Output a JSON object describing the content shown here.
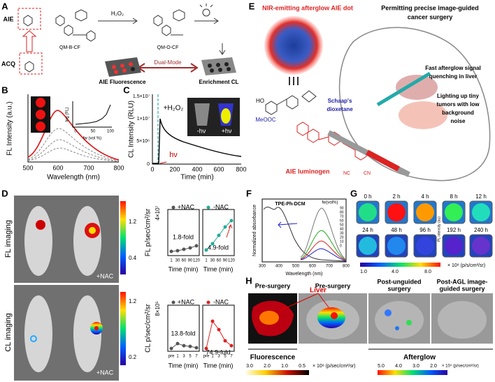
{
  "panel_labels": [
    "A",
    "B",
    "C",
    "D",
    "E",
    "F",
    "G",
    "H"
  ],
  "panel_a": {
    "aie": "AIE",
    "acq": "ACQ",
    "probe": "QM-B-CF",
    "reagent": "H₂O₂",
    "product": "QM-O-CF",
    "fluorescence": "AIE Fluorescence",
    "mode": "Dual-Mode",
    "enrichment": "Enrichment CL"
  },
  "panel_b": {
    "y_label": "FL Intensity (a.u.)",
    "x_label": "Wavelength (nm)",
    "x_ticks": [
      "500",
      "600",
      "700",
      "800"
    ],
    "inset_y_label": "log (FL)",
    "inset_x_label": "fw (vol %)",
    "inset_x_ticks": [
      "0",
      "50",
      "100"
    ]
  },
  "panel_c": {
    "y_label": "CL Intensity (RLU)",
    "x_label": "Time (min)",
    "y_ticks": [
      "0",
      "5×10⁶",
      "1×10⁷",
      "1.5×10⁷"
    ],
    "x_ticks": [
      "0",
      "200",
      "400",
      "600",
      "800"
    ],
    "reagent": "+H₂O₂",
    "light": "hν",
    "dark_vial": "-hν",
    "lit_vial": "+hν"
  },
  "panel_e": {
    "dot_title": "NIR-emitting afterglow AIE dot",
    "surgery_title": [
      "Permitting precise image-guided",
      "cancer surgery"
    ],
    "hydroxy": "HO",
    "ester": "MeOOC",
    "dioxetane": [
      "Schaap's",
      "dioxetane"
    ],
    "luminogen": "AIE luminogen",
    "nitrile_left": "NC",
    "nitrile_right": "CN",
    "liver_note": [
      "Fast afterglow signal",
      "quenching in liver"
    ],
    "tumor_note": [
      "Lighting up tiny",
      "tumors with low",
      "background",
      "noise"
    ]
  },
  "panel_d": {
    "fl_row": "FL imaging",
    "cl_row": "CL imaging",
    "treatment": "+NAC",
    "fl_scale": [
      "1.2",
      "0.4"
    ],
    "cl_scale": [
      "1.2",
      "0.2"
    ],
    "groups": [
      "+NAC",
      "-NAC"
    ],
    "fl_y_label": "FL p/sec/cm²/sr",
    "fl_y_unit": "4×10⁷",
    "fl_x_ticks": [
      "1",
      "30",
      "60",
      "90",
      "120"
    ],
    "fl_folds": [
      "1.8-fold",
      "4.9-fold"
    ],
    "cl_y_label": "CL p/sec/cm²/sr",
    "cl_y_unit": "8×10⁵",
    "cl_x_ticks": [
      "pre",
      "1",
      "3",
      "5",
      "7"
    ],
    "cl_folds": [
      "13.8-fold",
      "74.9-fold"
    ],
    "x_label": "Time (min)"
  },
  "panel_f": {
    "compound": "TPE-Ph-DCM",
    "legend_title": "fw(vol%)",
    "legend": [
      "90",
      "80",
      "70",
      "60",
      "50",
      "40",
      "30",
      "20",
      "10",
      "0"
    ],
    "y_label": "Normalized absorbance",
    "x_label": "Wavelength (nm)",
    "x_ticks": [
      "300",
      "400",
      "500",
      "600",
      "700",
      "800"
    ]
  },
  "panel_g": {
    "times": [
      "0 h",
      "2 h",
      "4 h",
      "8 h",
      "12 h",
      "24 h",
      "48 h",
      "96 h",
      "192 h",
      "240 h"
    ],
    "side_label": "PL intensity (au)",
    "scale": [
      "1.0",
      "4.0",
      "8.0"
    ],
    "unit": "× 10⁸ (p/s/cm²/sr)"
  },
  "panel_h": {
    "titles": [
      [
        "Pre-surgery"
      ],
      [
        "Pre-surgery"
      ],
      [
        "Post-unguided",
        "surgery"
      ],
      [
        "Post-AGL image-",
        "guided surgery"
      ]
    ],
    "organ": "Liver",
    "fluorescence": "Fluorescence",
    "afterglow": "Afterglow",
    "fl_scale": [
      "3.0",
      "2.0",
      "1.0",
      "0.5"
    ],
    "fl_unit": "× 10⁸ (p/sec/cm²/sr)",
    "ag_scale": [
      "5.0",
      "4.0",
      "3.0",
      "2.0"
    ],
    "ag_unit": "× 10⁴ (p/sec/cm²/sr)"
  }
}
